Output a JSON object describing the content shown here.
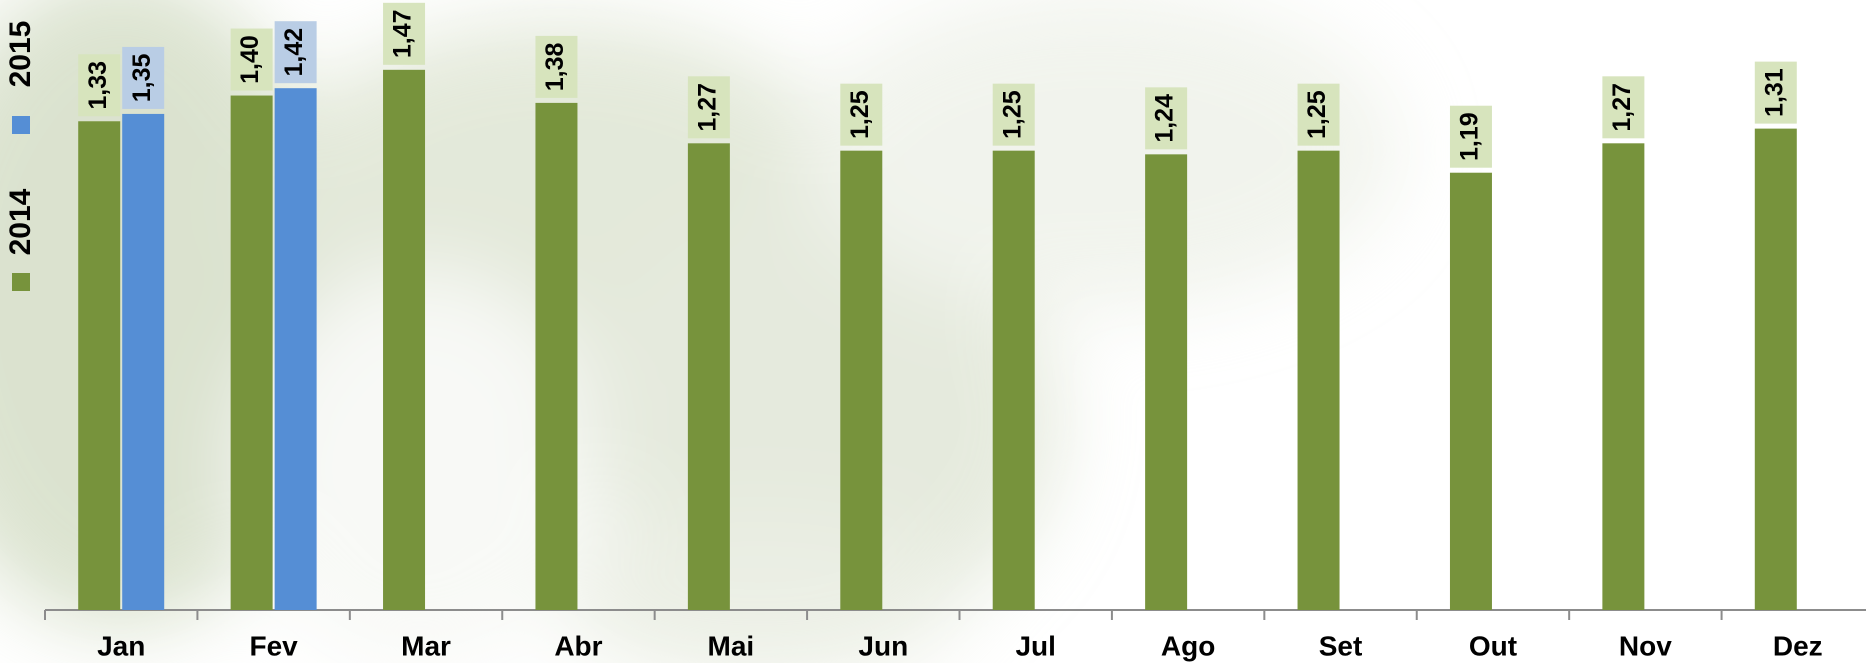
{
  "chart_data": {
    "type": "bar",
    "categories": [
      "Jan",
      "Fev",
      "Mar",
      "Abr",
      "Mai",
      "Jun",
      "Jul",
      "Ago",
      "Set",
      "Out",
      "Nov",
      "Dez"
    ],
    "series": [
      {
        "name": "2014",
        "color": "#77933c",
        "label_color": "#d7e4bd",
        "values": [
          1.33,
          1.4,
          1.47,
          1.38,
          1.27,
          1.25,
          1.25,
          1.24,
          1.25,
          1.19,
          1.27,
          1.31
        ],
        "value_labels": [
          "1,33",
          "1,40",
          "1,47",
          "1,38",
          "1,27",
          "1,25",
          "1,25",
          "1,24",
          "1,25",
          "1,19",
          "1,27",
          "1,31"
        ]
      },
      {
        "name": "2015",
        "color": "#558ed5",
        "label_color": "#b9cde5",
        "values": [
          1.35,
          1.42,
          null,
          null,
          null,
          null,
          null,
          null,
          null,
          null,
          null,
          null
        ],
        "value_labels": [
          "1,35",
          "1,42",
          null,
          null,
          null,
          null,
          null,
          null,
          null,
          null,
          null,
          null
        ]
      }
    ],
    "ylim": [
      0,
      1.66
    ]
  }
}
